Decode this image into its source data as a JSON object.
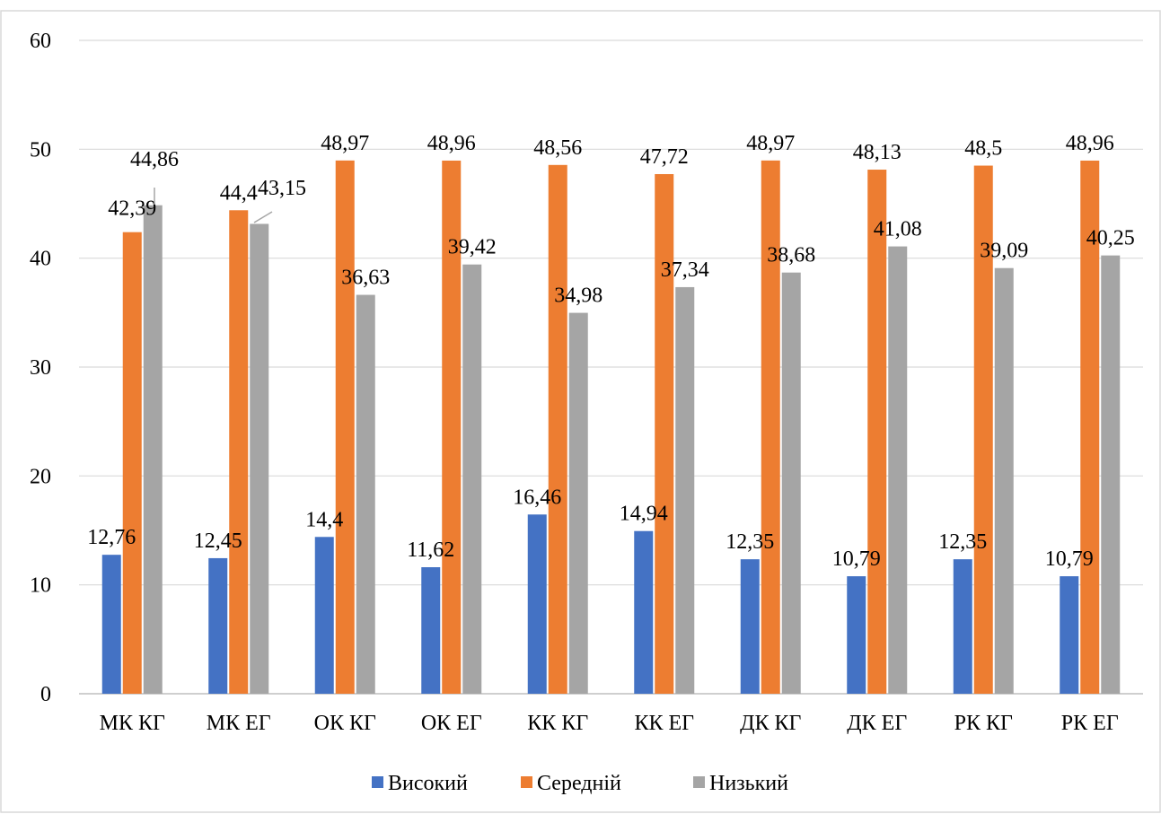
{
  "chart_data": {
    "type": "bar",
    "title": "",
    "xlabel": "",
    "ylabel": "",
    "ylim": [
      0,
      60
    ],
    "yticks": [
      0,
      10,
      20,
      30,
      40,
      50,
      60
    ],
    "grid": true,
    "legend_position": "bottom",
    "categories": [
      "МК КГ",
      "МК ЕГ",
      "ОК КГ",
      "ОК ЕГ",
      "КК КГ",
      "КК ЕГ",
      "ДК КГ",
      "ДК ЕГ",
      "РК КГ",
      "РК ЕГ"
    ],
    "series": [
      {
        "name": "Високий",
        "color": "#4472c4",
        "values": [
          12.76,
          12.45,
          14.4,
          11.62,
          16.46,
          14.94,
          12.35,
          10.79,
          12.35,
          10.79
        ],
        "labels": [
          "12,76",
          "12,45",
          "14,4",
          "11,62",
          "16,46",
          "14,94",
          "12,35",
          "10,79",
          "12,35",
          "10,79"
        ]
      },
      {
        "name": "Середній",
        "color": "#ed7d31",
        "values": [
          42.39,
          44.4,
          48.97,
          48.96,
          48.56,
          47.72,
          48.97,
          48.13,
          48.5,
          48.96
        ],
        "labels": [
          "42,39",
          "44,4",
          "48,97",
          "48,96",
          "48,56",
          "47,72",
          "48,97",
          "48,13",
          "48,5",
          "48,96"
        ]
      },
      {
        "name": "Низький",
        "color": "#a5a5a5",
        "values": [
          44.86,
          43.15,
          36.63,
          39.42,
          34.98,
          37.34,
          38.68,
          41.08,
          39.09,
          40.25
        ],
        "labels": [
          "44,86",
          "43,15",
          "36,63",
          "39,42",
          "34,98",
          "37,34",
          "38,68",
          "41,08",
          "39,09",
          "40,25"
        ]
      }
    ]
  }
}
